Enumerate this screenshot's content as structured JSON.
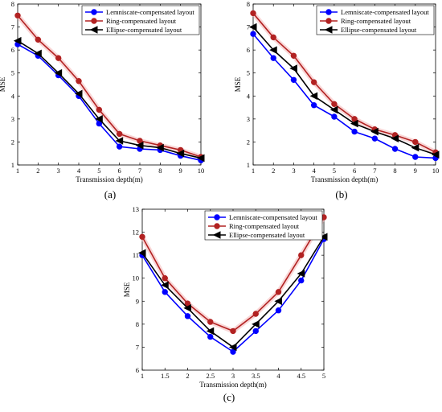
{
  "chart_data": [
    {
      "type": "line",
      "panel_label": "(a)",
      "xlabel": "Transmission depth(m)",
      "ylabel": "MSE",
      "x": [
        1,
        2,
        3,
        4,
        5,
        6,
        7,
        8,
        9,
        10
      ],
      "xticks": [
        "1",
        "2",
        "3",
        "4",
        "5",
        "6",
        "7",
        "8",
        "9",
        "10"
      ],
      "ylim": [
        1,
        8
      ],
      "yticks": [
        "1",
        "2",
        "3",
        "4",
        "5",
        "6",
        "7",
        "8"
      ],
      "legend_position": "top-right",
      "series": [
        {
          "name": "Lemniscate-compensated layout",
          "color": "#0000ff",
          "marker": "circle",
          "values": [
            6.25,
            5.75,
            4.9,
            4.0,
            2.8,
            1.8,
            1.7,
            1.65,
            1.4,
            1.2
          ]
        },
        {
          "name": "Ring-compensated layout",
          "color": "#b22222",
          "marker": "circle",
          "values": [
            7.5,
            6.45,
            5.65,
            4.65,
            3.4,
            2.35,
            2.05,
            1.85,
            1.65,
            1.35
          ]
        },
        {
          "name": "Ellipse-compensated layout",
          "color": "#000000",
          "marker": "triangle-left",
          "values": [
            6.4,
            5.85,
            5.0,
            4.1,
            3.0,
            2.05,
            1.85,
            1.75,
            1.5,
            1.3
          ]
        }
      ]
    },
    {
      "type": "line",
      "panel_label": "(b)",
      "xlabel": "Transmission depth(m)",
      "ylabel": "MSE",
      "x": [
        1,
        2,
        3,
        4,
        5,
        6,
        7,
        8,
        9,
        10
      ],
      "xticks": [
        "1",
        "2",
        "3",
        "4",
        "5",
        "6",
        "7",
        "8",
        "9",
        "10"
      ],
      "ylim": [
        1,
        8
      ],
      "yticks": [
        "1",
        "2",
        "3",
        "4",
        "5",
        "6",
        "7",
        "8"
      ],
      "legend_position": "top-right",
      "series": [
        {
          "name": "Lemniscate-compensated layout",
          "color": "#0000ff",
          "marker": "circle",
          "values": [
            6.7,
            5.65,
            4.7,
            3.6,
            3.1,
            2.45,
            2.15,
            1.7,
            1.35,
            1.3
          ]
        },
        {
          "name": "Ring-compensated layout",
          "color": "#b22222",
          "marker": "circle",
          "values": [
            7.6,
            6.55,
            5.75,
            4.6,
            3.65,
            3.0,
            2.55,
            2.3,
            2.0,
            1.55
          ]
        },
        {
          "name": "Ellipse-compensated layout",
          "color": "#000000",
          "marker": "triangle-left",
          "values": [
            7.0,
            6.0,
            5.2,
            4.0,
            3.4,
            2.8,
            2.45,
            2.15,
            1.75,
            1.45
          ]
        }
      ]
    },
    {
      "type": "line",
      "panel_label": "(c)",
      "xlabel": "Transmission depth(m)",
      "ylabel": "MSE",
      "x": [
        1,
        1.5,
        2,
        2.5,
        3,
        3.5,
        4,
        4.5,
        5
      ],
      "xticks": [
        "1",
        "1.5",
        "2",
        "2.5",
        "3",
        "3.5",
        "4",
        "4.5",
        "5"
      ],
      "ylim": [
        6,
        13
      ],
      "yticks": [
        "6",
        "7",
        "8",
        "9",
        "10",
        "11",
        "12",
        "13"
      ],
      "legend_position": "top-right",
      "series": [
        {
          "name": "Lemniscate-compensated layout",
          "color": "#0000ff",
          "marker": "circle",
          "values": [
            11.0,
            9.4,
            8.35,
            7.45,
            6.8,
            7.7,
            8.6,
            9.9,
            11.7
          ]
        },
        {
          "name": "Ring-compensated layout",
          "color": "#b22222",
          "marker": "circle",
          "values": [
            11.8,
            10.0,
            8.9,
            8.1,
            7.7,
            8.45,
            9.4,
            11.0,
            12.65
          ]
        },
        {
          "name": "Ellipse-compensated layout",
          "color": "#000000",
          "marker": "triangle-left",
          "values": [
            11.1,
            9.7,
            8.7,
            7.7,
            7.0,
            8.0,
            9.0,
            10.2,
            11.8
          ]
        }
      ]
    }
  ]
}
